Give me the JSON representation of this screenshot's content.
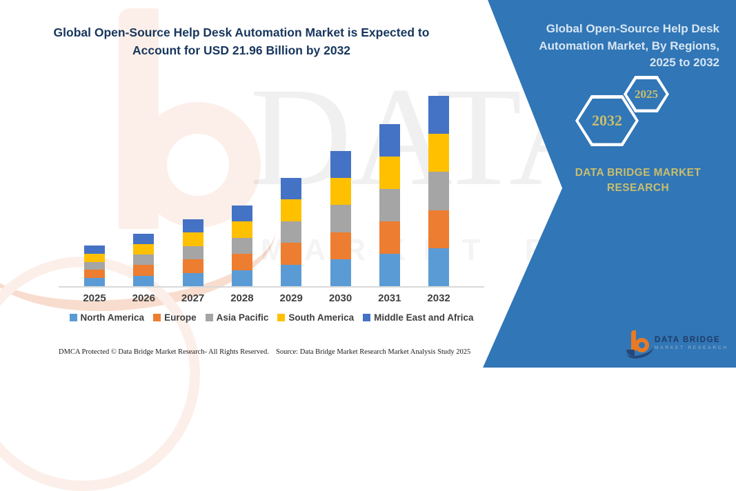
{
  "header": {
    "title_lines": [
      "Global Open-Source Help Desk Automation Market is Expected to",
      "Account for USD 21.96 Billion by 2032"
    ]
  },
  "chart_data": {
    "type": "bar",
    "stacked": true,
    "title": "Global Open-Source Help Desk Automation Market is Expected to Account for USD 21.96 Billion by 2032",
    "unit": "USD Billion",
    "categories": [
      "2025",
      "2026",
      "2027",
      "2028",
      "2029",
      "2030",
      "2031",
      "2032"
    ],
    "series": [
      {
        "name": "North America",
        "color": "#5B9BD5",
        "values": [
          0.94,
          1.22,
          1.54,
          1.86,
          2.5,
          3.12,
          3.74,
          4.39
        ]
      },
      {
        "name": "Europe",
        "color": "#ED7D31",
        "values": [
          0.94,
          1.22,
          1.54,
          1.86,
          2.5,
          3.12,
          3.74,
          4.39
        ]
      },
      {
        "name": "Asia Pacific",
        "color": "#A5A5A5",
        "values": [
          0.94,
          1.22,
          1.54,
          1.86,
          2.5,
          3.12,
          3.74,
          4.39
        ]
      },
      {
        "name": "South America",
        "color": "#FFC000",
        "values": [
          0.94,
          1.22,
          1.54,
          1.86,
          2.5,
          3.12,
          3.74,
          4.39
        ]
      },
      {
        "name": "Middle East and Africa",
        "color": "#4472C4",
        "values": [
          0.94,
          1.22,
          1.54,
          1.86,
          2.5,
          3.12,
          3.74,
          4.39
        ]
      }
    ],
    "totals": [
      4.7,
      6.1,
      7.7,
      9.3,
      12.5,
      15.6,
      18.7,
      21.96
    ],
    "ylim": [
      0,
      22
    ],
    "grid": false,
    "legend_position": "bottom",
    "axis_line_color": "#D9D9D9"
  },
  "side_panel": {
    "title_lines": [
      "Global Open-Source Help Desk",
      "Automation Market, By Regions,",
      "2025 to 2032"
    ],
    "hexagons": [
      {
        "label": "2032"
      },
      {
        "label": "2025"
      }
    ],
    "brand_lines": [
      "DATA BRIDGE MARKET",
      "RESEARCH"
    ],
    "logo": {
      "name": "DATA BRIDGE",
      "tagline": "MARKET RESEARCH"
    },
    "colors": {
      "panel_blue": "#3176B6",
      "gold_text": "#C9BE6E"
    }
  },
  "watermarks": {
    "big_text": "DATA BRIDGE",
    "sub_text": "MARKET RESEARCH"
  },
  "footer": {
    "left": "DMCA Protected © Data Bridge Market Research-  All Rights Reserved.",
    "right": "Source: Data Bridge Market Research  Market Analysis Study 2025"
  }
}
